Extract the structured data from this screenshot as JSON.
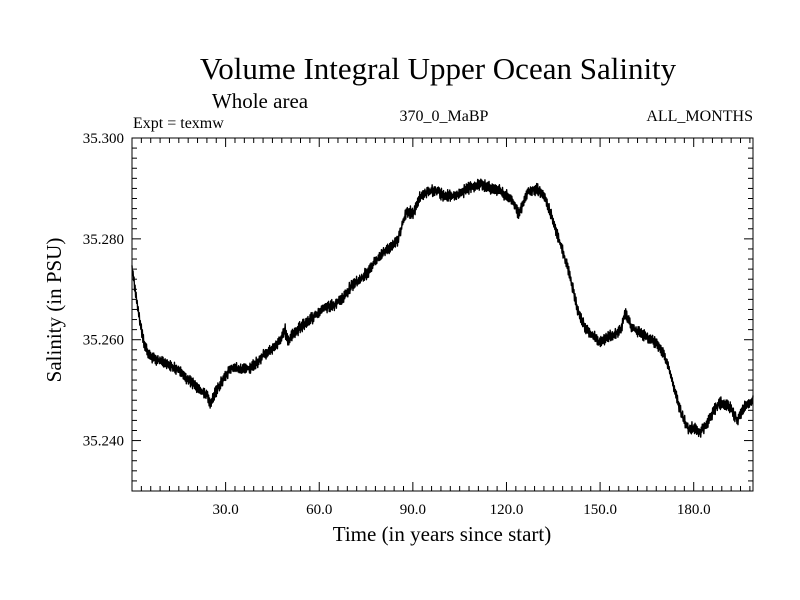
{
  "chart_data": {
    "type": "line",
    "title": "Volume Integral Upper Ocean Salinity",
    "subtitle": "Whole area",
    "annotations": {
      "left": "Expt = texmw",
      "center": "370_0_MaBP",
      "right": "ALL_MONTHS"
    },
    "xlabel": "Time (in years since start)",
    "ylabel": "Salinity (in PSU)",
    "xlim": [
      0,
      199
    ],
    "ylim": [
      35.23,
      35.3
    ],
    "x_ticks": [
      30,
      60,
      90,
      120,
      150,
      180
    ],
    "x_tick_labels": [
      "30.0",
      "60.0",
      "90.0",
      "120.0",
      "150.0",
      "180.0"
    ],
    "y_ticks": [
      35.24,
      35.26,
      35.28,
      35.3
    ],
    "y_tick_labels": [
      "35.240",
      "35.260",
      "35.280",
      "35.300"
    ],
    "noise_amplitude": 0.0011,
    "series": [
      {
        "name": "Salinity",
        "x": [
          0,
          1,
          2,
          3,
          4,
          6,
          8,
          10,
          12,
          15,
          18,
          20,
          22,
          24,
          25,
          26,
          28,
          30,
          32,
          35,
          38,
          40,
          42,
          45,
          48,
          49,
          50,
          52,
          55,
          58,
          60,
          62,
          65,
          68,
          70,
          72,
          75,
          78,
          80,
          82,
          85,
          87,
          88,
          90,
          92,
          95,
          98,
          100,
          103,
          105,
          108,
          110,
          112,
          115,
          118,
          120,
          122,
          124,
          125,
          127,
          130,
          132,
          135,
          137,
          140,
          143,
          145,
          148,
          150,
          152,
          155,
          157,
          158,
          159,
          160,
          162,
          165,
          168,
          170,
          172,
          174,
          176,
          178,
          180,
          182,
          184,
          186,
          188,
          190,
          192,
          194,
          196,
          199
        ],
        "y": [
          35.274,
          35.27,
          35.266,
          35.262,
          35.259,
          35.2565,
          35.256,
          35.2555,
          35.255,
          35.254,
          35.252,
          35.251,
          35.25,
          35.249,
          35.247,
          35.2485,
          35.251,
          35.253,
          35.2545,
          35.254,
          35.2545,
          35.2555,
          35.257,
          35.258,
          35.2605,
          35.262,
          35.2595,
          35.2615,
          35.263,
          35.2645,
          35.2655,
          35.2665,
          35.267,
          35.2685,
          35.2705,
          35.2715,
          35.273,
          35.2755,
          35.277,
          35.278,
          35.2795,
          35.2835,
          35.2855,
          35.285,
          35.288,
          35.2895,
          35.2895,
          35.2885,
          35.2885,
          35.289,
          35.29,
          35.2905,
          35.291,
          35.29,
          35.2895,
          35.2885,
          35.2875,
          35.285,
          35.2865,
          35.2895,
          35.29,
          35.2885,
          35.2835,
          35.2795,
          35.2735,
          35.2655,
          35.2625,
          35.2605,
          35.2595,
          35.2605,
          35.261,
          35.2625,
          35.2655,
          35.264,
          35.2625,
          35.2615,
          35.2605,
          35.2595,
          35.2575,
          35.2545,
          35.2495,
          35.2455,
          35.2425,
          35.2425,
          35.2415,
          35.243,
          35.2455,
          35.2475,
          35.247,
          35.2465,
          35.244,
          35.2465,
          35.248
        ]
      }
    ]
  }
}
